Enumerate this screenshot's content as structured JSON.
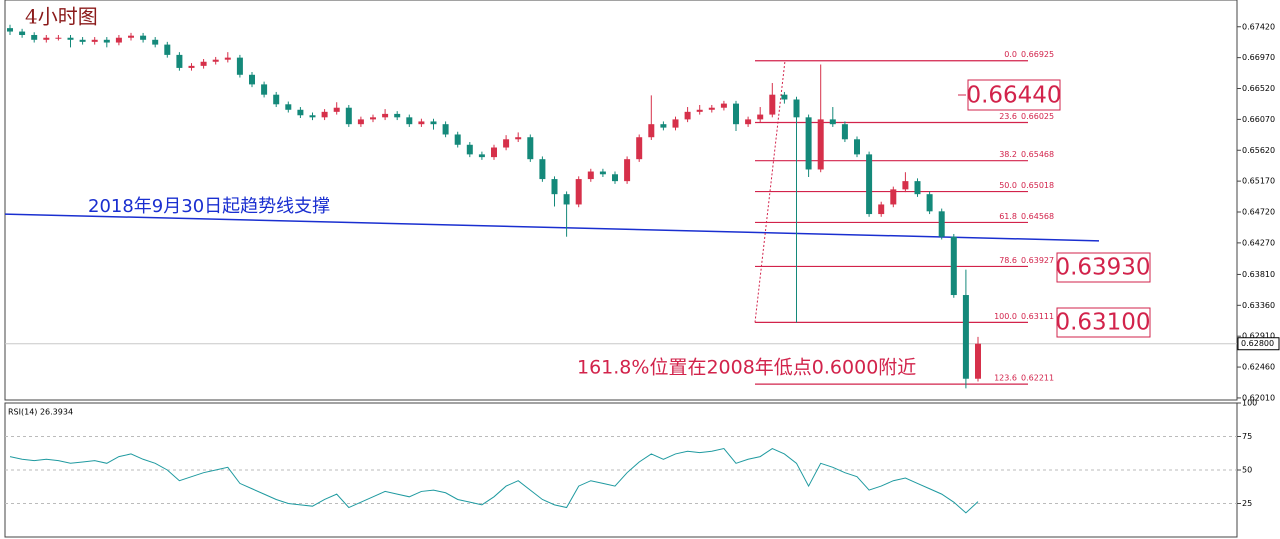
{
  "chart_data": [
    {
      "type": "candlestick",
      "title": "4小时图",
      "up_color": "#d6304a",
      "down_color": "#14897a",
      "open": [
        0.674,
        0.6735,
        0.673,
        0.6723,
        0.6726,
        0.6726,
        0.6723,
        0.672,
        0.6723,
        0.6719,
        0.6726,
        0.6729,
        0.6723,
        0.6716,
        0.6701,
        0.6682,
        0.6685,
        0.6691,
        0.6694,
        0.6697,
        0.6672,
        0.6658,
        0.6643,
        0.6629,
        0.6621,
        0.6613,
        0.661,
        0.6618,
        0.6624,
        0.66,
        0.6607,
        0.661,
        0.6615,
        0.661,
        0.66,
        0.6604,
        0.66,
        0.6585,
        0.657,
        0.6556,
        0.6552,
        0.6566,
        0.6578,
        0.6581,
        0.6549,
        0.652,
        0.6498,
        0.6483,
        0.652,
        0.6531,
        0.6527,
        0.6517,
        0.6549,
        0.6581,
        0.66,
        0.6595,
        0.6607,
        0.6618,
        0.6621,
        0.6624,
        0.663,
        0.66,
        0.6607,
        0.6614,
        0.6643,
        0.6636,
        0.661,
        0.6534,
        0.6607,
        0.66,
        0.6578,
        0.6556,
        0.6469,
        0.6483,
        0.6505,
        0.6517,
        0.6498,
        0.6473,
        0.6436,
        0.6351,
        0.6229
      ],
      "high": [
        0.6745,
        0.6739,
        0.6734,
        0.673,
        0.673,
        0.673,
        0.6727,
        0.6727,
        0.6727,
        0.673,
        0.6733,
        0.6733,
        0.6727,
        0.672,
        0.6705,
        0.6689,
        0.6695,
        0.6698,
        0.6705,
        0.6701,
        0.6676,
        0.6662,
        0.6647,
        0.6633,
        0.6625,
        0.6617,
        0.6622,
        0.6632,
        0.6628,
        0.6611,
        0.6614,
        0.6622,
        0.6619,
        0.6614,
        0.6608,
        0.6608,
        0.6604,
        0.6589,
        0.6574,
        0.656,
        0.657,
        0.6584,
        0.6588,
        0.6585,
        0.6553,
        0.6524,
        0.6502,
        0.6524,
        0.6535,
        0.6535,
        0.6531,
        0.6553,
        0.6585,
        0.6642,
        0.6604,
        0.6611,
        0.6625,
        0.6628,
        0.6628,
        0.6634,
        0.6634,
        0.6611,
        0.6625,
        0.666,
        0.6647,
        0.664,
        0.6614,
        0.6687,
        0.6625,
        0.6604,
        0.6582,
        0.656,
        0.6487,
        0.6509,
        0.653,
        0.6521,
        0.6502,
        0.6477,
        0.644,
        0.6388,
        0.629
      ],
      "low": [
        0.673,
        0.6726,
        0.6719,
        0.6719,
        0.6722,
        0.6712,
        0.6716,
        0.6716,
        0.6712,
        0.6715,
        0.6722,
        0.6719,
        0.6712,
        0.6697,
        0.6678,
        0.6678,
        0.6681,
        0.6687,
        0.669,
        0.6668,
        0.6654,
        0.6639,
        0.6625,
        0.6617,
        0.6609,
        0.6606,
        0.6606,
        0.6614,
        0.6596,
        0.6596,
        0.6603,
        0.6606,
        0.6606,
        0.6596,
        0.6596,
        0.6592,
        0.6581,
        0.6566,
        0.6552,
        0.6548,
        0.6548,
        0.6562,
        0.6574,
        0.6545,
        0.6516,
        0.648,
        0.6436,
        0.6479,
        0.6516,
        0.6523,
        0.6513,
        0.6513,
        0.6545,
        0.6577,
        0.6591,
        0.6591,
        0.6603,
        0.6614,
        0.6617,
        0.662,
        0.659,
        0.6596,
        0.6603,
        0.661,
        0.663,
        0.6311,
        0.6523,
        0.653,
        0.6596,
        0.6574,
        0.6552,
        0.6465,
        0.6465,
        0.6479,
        0.6501,
        0.6494,
        0.6469,
        0.6432,
        0.6347,
        0.6215,
        0.6225
      ],
      "close": [
        0.6735,
        0.673,
        0.6723,
        0.6726,
        0.6726,
        0.6723,
        0.672,
        0.6723,
        0.6719,
        0.6726,
        0.6729,
        0.6723,
        0.6716,
        0.6701,
        0.6682,
        0.6685,
        0.6691,
        0.6694,
        0.6697,
        0.6672,
        0.6658,
        0.6643,
        0.6629,
        0.6621,
        0.6613,
        0.661,
        0.6618,
        0.6624,
        0.66,
        0.6607,
        0.661,
        0.6615,
        0.661,
        0.66,
        0.6604,
        0.66,
        0.6585,
        0.657,
        0.6556,
        0.6552,
        0.6566,
        0.6578,
        0.6581,
        0.6549,
        0.652,
        0.6498,
        0.6483,
        0.652,
        0.6531,
        0.6527,
        0.6517,
        0.6549,
        0.6581,
        0.66,
        0.6595,
        0.6607,
        0.6618,
        0.6621,
        0.6624,
        0.663,
        0.66,
        0.6607,
        0.6614,
        0.6643,
        0.6636,
        0.661,
        0.6534,
        0.6607,
        0.66,
        0.6578,
        0.6556,
        0.6469,
        0.6483,
        0.6505,
        0.6517,
        0.6498,
        0.6473,
        0.6436,
        0.6351,
        0.6229,
        0.628
      ],
      "ylim": [
        0.6198,
        0.6781
      ],
      "yticks": [
        {
          "value": 0.6742,
          "label": "0.67420"
        },
        {
          "value": 0.6697,
          "label": "0.66970"
        },
        {
          "value": 0.6652,
          "label": "0.66520"
        },
        {
          "value": 0.6607,
          "label": "0.66070"
        },
        {
          "value": 0.6562,
          "label": "0.65620"
        },
        {
          "value": 0.6517,
          "label": "0.65170"
        },
        {
          "value": 0.6472,
          "label": "0.64720"
        },
        {
          "value": 0.6427,
          "label": "0.64270"
        },
        {
          "value": 0.6381,
          "label": "0.63810"
        },
        {
          "value": 0.6336,
          "label": "0.63360"
        },
        {
          "value": 0.6291,
          "label": "0.62910"
        },
        {
          "value": 0.6246,
          "label": "0.62460"
        },
        {
          "value": 0.6201,
          "label": "0.62010"
        }
      ],
      "current_price": {
        "value": 0.628,
        "label": "0.62800"
      },
      "trendline": {
        "x": [
          0,
          90
        ],
        "y": [
          0.6469,
          0.643
        ],
        "color": "#1a2fd0"
      },
      "fib_color": "#d2234b",
      "fib_levels": [
        {
          "level": {
            "value": 0,
            "label": "0.0"
          },
          "price": 0.66925
        },
        {
          "level": 23.6,
          "price": 0.66025
        },
        {
          "level": 38.2,
          "price": 0.65468
        },
        {
          "level": {
            "value": 50,
            "label": "50.0"
          },
          "price": 0.65018
        },
        {
          "level": 61.8,
          "price": 0.64568
        },
        {
          "level": 78.6,
          "price": 0.63927
        },
        {
          "level": {
            "value": 100,
            "label": "100.0"
          },
          "price": 0.63111
        },
        {
          "level": 123.6,
          "price": 0.62211
        }
      ],
      "annotations": [
        "2018年9月30日起趋势线支撑",
        "0.66440",
        "0.63930",
        "0.63100",
        "161.8%位置在2008年低点0.6000附近"
      ]
    },
    {
      "type": "line",
      "title": "RSI(14) 26.3934",
      "color": "#1f9aa0",
      "values": [
        60,
        58,
        57,
        58,
        57,
        55,
        56,
        57,
        55,
        60,
        62,
        58,
        55,
        50,
        42,
        45,
        48,
        50,
        52,
        40,
        36,
        32,
        28,
        25,
        24,
        23,
        28,
        32,
        22,
        26,
        30,
        34,
        32,
        30,
        34,
        35,
        33,
        28,
        26,
        24,
        30,
        38,
        42,
        35,
        28,
        24,
        22,
        38,
        42,
        40,
        38,
        48,
        56,
        62,
        58,
        62,
        64,
        63,
        64,
        66,
        55,
        58,
        60,
        66,
        62,
        55,
        38,
        55,
        52,
        48,
        45,
        35,
        38,
        42,
        44,
        40,
        36,
        32,
        26,
        18,
        26.3934
      ],
      "ylim": [
        0,
        100
      ],
      "yticks": [
        100,
        75,
        50,
        25
      ]
    }
  ]
}
